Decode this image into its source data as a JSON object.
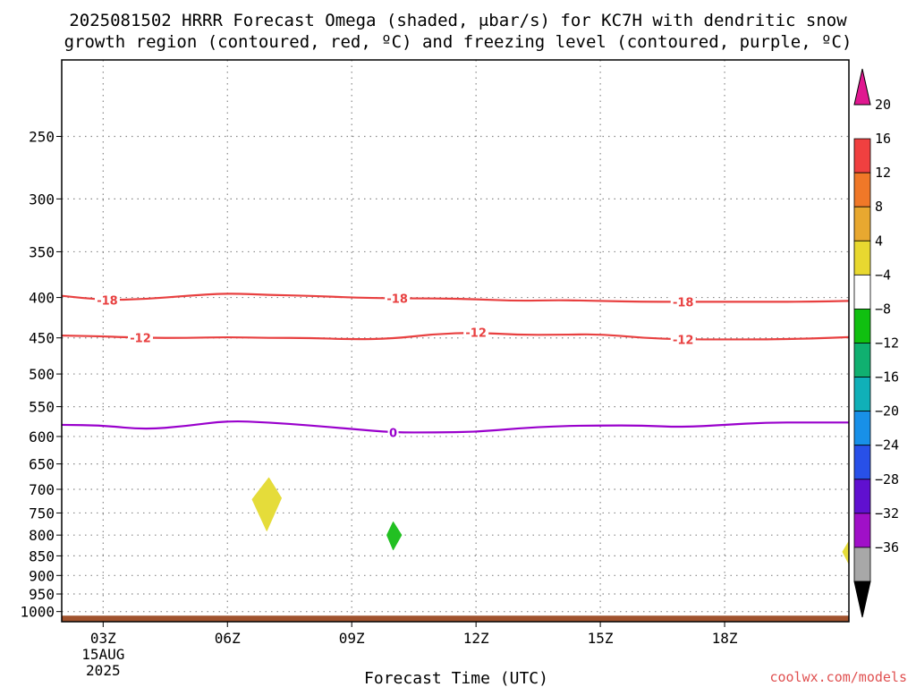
{
  "title": {
    "line1": "2025081502 HRRR Forecast Omega (shaded, μbar/s) for KC7H with dendritic snow",
    "line2": "growth region (contoured, red, ºC) and freezing level (contoured, purple, ºC)"
  },
  "credit": "coolwx.com/models",
  "colors": {
    "isotherm": "#e84040",
    "freezing_level": "#9900cc",
    "ground": "#a0522d",
    "grid": "#888888",
    "credit": "#e05050"
  },
  "chart_data": {
    "type": "time-height contour",
    "xlabel": "Forecast Time (UTC)",
    "ylabel": "",
    "x_range_hours": [
      2,
      21
    ],
    "y_range_hpa": [
      200,
      1030
    ],
    "y_axis": "pressure (log), inverted",
    "grid": true,
    "x_ticks": [
      {
        "hour": 3,
        "label": "03Z",
        "sub1": "15AUG",
        "sub2": "2025"
      },
      {
        "hour": 6,
        "label": "06Z"
      },
      {
        "hour": 9,
        "label": "09Z"
      },
      {
        "hour": 12,
        "label": "12Z"
      },
      {
        "hour": 15,
        "label": "15Z"
      },
      {
        "hour": 18,
        "label": "18Z"
      }
    ],
    "y_ticks": [
      250,
      300,
      350,
      400,
      450,
      500,
      550,
      600,
      650,
      700,
      750,
      800,
      850,
      900,
      950,
      1000
    ],
    "contours": [
      {
        "name": "-18",
        "color": "#e84040",
        "points": [
          [
            2,
            398
          ],
          [
            3,
            403
          ],
          [
            4,
            402
          ],
          [
            5,
            398
          ],
          [
            6,
            395
          ],
          [
            7,
            397
          ],
          [
            8,
            398
          ],
          [
            9,
            400
          ],
          [
            10,
            401
          ],
          [
            11,
            401
          ],
          [
            12,
            402
          ],
          [
            13,
            404
          ],
          [
            14,
            403
          ],
          [
            15,
            404
          ],
          [
            16,
            405
          ],
          [
            17,
            405
          ],
          [
            18,
            405
          ],
          [
            19,
            405
          ],
          [
            20,
            405
          ],
          [
            21,
            404
          ]
        ],
        "labels": [
          {
            "x": 3.1,
            "text": "-18"
          },
          {
            "x": 10.1,
            "text": "-18"
          },
          {
            "x": 17.0,
            "text": "-18"
          }
        ]
      },
      {
        "name": "-12",
        "color": "#e84040",
        "points": [
          [
            2,
            447
          ],
          [
            3,
            448
          ],
          [
            4,
            450
          ],
          [
            5,
            450
          ],
          [
            6,
            449
          ],
          [
            7,
            450
          ],
          [
            8,
            450
          ],
          [
            9,
            452
          ],
          [
            10,
            451
          ],
          [
            11,
            445
          ],
          [
            12,
            443
          ],
          [
            13,
            446
          ],
          [
            14,
            446
          ],
          [
            15,
            445
          ],
          [
            16,
            450
          ],
          [
            17,
            452
          ],
          [
            18,
            452
          ],
          [
            19,
            452
          ],
          [
            20,
            451
          ],
          [
            21,
            449
          ]
        ],
        "labels": [
          {
            "x": 3.9,
            "text": "-12"
          },
          {
            "x": 12.0,
            "text": "-12"
          },
          {
            "x": 17.0,
            "text": "-12"
          }
        ]
      },
      {
        "name": "0",
        "color": "#9900cc",
        "points": [
          [
            2,
            580
          ],
          [
            3,
            581
          ],
          [
            4,
            588
          ],
          [
            5,
            582
          ],
          [
            6,
            573
          ],
          [
            7,
            576
          ],
          [
            8,
            581
          ],
          [
            9,
            587
          ],
          [
            10,
            593
          ],
          [
            11,
            593
          ],
          [
            12,
            592
          ],
          [
            13,
            586
          ],
          [
            14,
            582
          ],
          [
            15,
            581
          ],
          [
            16,
            581
          ],
          [
            17,
            584
          ],
          [
            18,
            580
          ],
          [
            19,
            576
          ],
          [
            20,
            576
          ],
          [
            21,
            576
          ]
        ],
        "labels": [
          {
            "x": 10.0,
            "text": "0"
          }
        ]
      }
    ],
    "shaded_cells": [
      {
        "value": 4,
        "color": "#e5dc3a",
        "points": [
          [
            6.6,
            721
          ],
          [
            7.0,
            677
          ],
          [
            7.3,
            718
          ],
          [
            6.95,
            790
          ]
        ]
      },
      {
        "value": -8,
        "color": "#22c022",
        "points": [
          [
            9.85,
            800
          ],
          [
            10.0,
            770
          ],
          [
            10.2,
            800
          ],
          [
            10.0,
            835
          ]
        ]
      },
      {
        "value": 4,
        "color": "#e5dc3a",
        "points": [
          [
            20.85,
            840
          ],
          [
            21.0,
            815
          ],
          [
            21.0,
            870
          ]
        ]
      }
    ],
    "ground_level_hpa": 1012,
    "colorbar": [
      {
        "label": "20",
        "color": "#e01890"
      },
      {
        "label": "16",
        "color": "#f04040"
      },
      {
        "label": "12",
        "color": "#f07828"
      },
      {
        "label": "8",
        "color": "#e8a830"
      },
      {
        "label": "4",
        "color": "#e8d830"
      },
      {
        "label": "−4",
        "color": "#ffffff"
      },
      {
        "label": "−8",
        "color": "#10c010"
      },
      {
        "label": "−12",
        "color": "#10b070"
      },
      {
        "label": "−16",
        "color": "#10b0b8"
      },
      {
        "label": "−20",
        "color": "#1890e8"
      },
      {
        "label": "−24",
        "color": "#2850e8"
      },
      {
        "label": "−28",
        "color": "#6010d0"
      },
      {
        "label": "−32",
        "color": "#a010c8"
      },
      {
        "label": "−36",
        "color": "#a8a8a8"
      }
    ],
    "colorbar_min_color": "#000000"
  }
}
